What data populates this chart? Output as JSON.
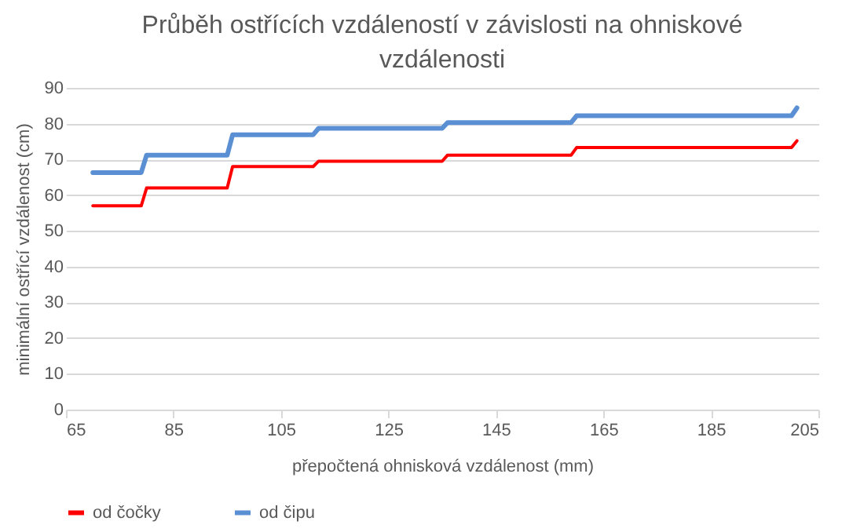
{
  "chart_data": {
    "type": "line",
    "title": "Průběh ostřících vzdáleností v závislosti na ohniskové vzdálenosti",
    "xlabel": "přepočtená ohnisková vzdálenost (mm)",
    "ylabel": "minimální ostřící vzdálenost (cm)",
    "xlim": [
      65,
      205
    ],
    "xticks": [
      65,
      85,
      105,
      125,
      145,
      165,
      185,
      205
    ],
    "ylim": [
      0,
      90
    ],
    "yticks": [
      0,
      10,
      20,
      30,
      40,
      50,
      60,
      70,
      80,
      90
    ],
    "grid": "y",
    "legend": "bottom",
    "marker": "none",
    "line_style": "solid",
    "series": [
      {
        "name": "od čočky",
        "color": "#ff0000",
        "x": [
          70,
          79,
          80,
          95,
          96,
          111,
          112,
          135,
          136,
          159,
          160,
          200,
          201
        ],
        "values": [
          57,
          57,
          62,
          62,
          68,
          68,
          69.5,
          69.5,
          71.2,
          71.2,
          73.3,
          73.3,
          75.2
        ]
      },
      {
        "name": "od čipu",
        "color": "#5b8fd4",
        "x": [
          70,
          79,
          80,
          95,
          96,
          111,
          112,
          135,
          136,
          159,
          160,
          200,
          201
        ],
        "values": [
          66.3,
          66.3,
          71.2,
          71.2,
          76.9,
          76.9,
          78.7,
          78.7,
          80.3,
          80.3,
          82.2,
          82.2,
          84.4
        ]
      }
    ]
  }
}
